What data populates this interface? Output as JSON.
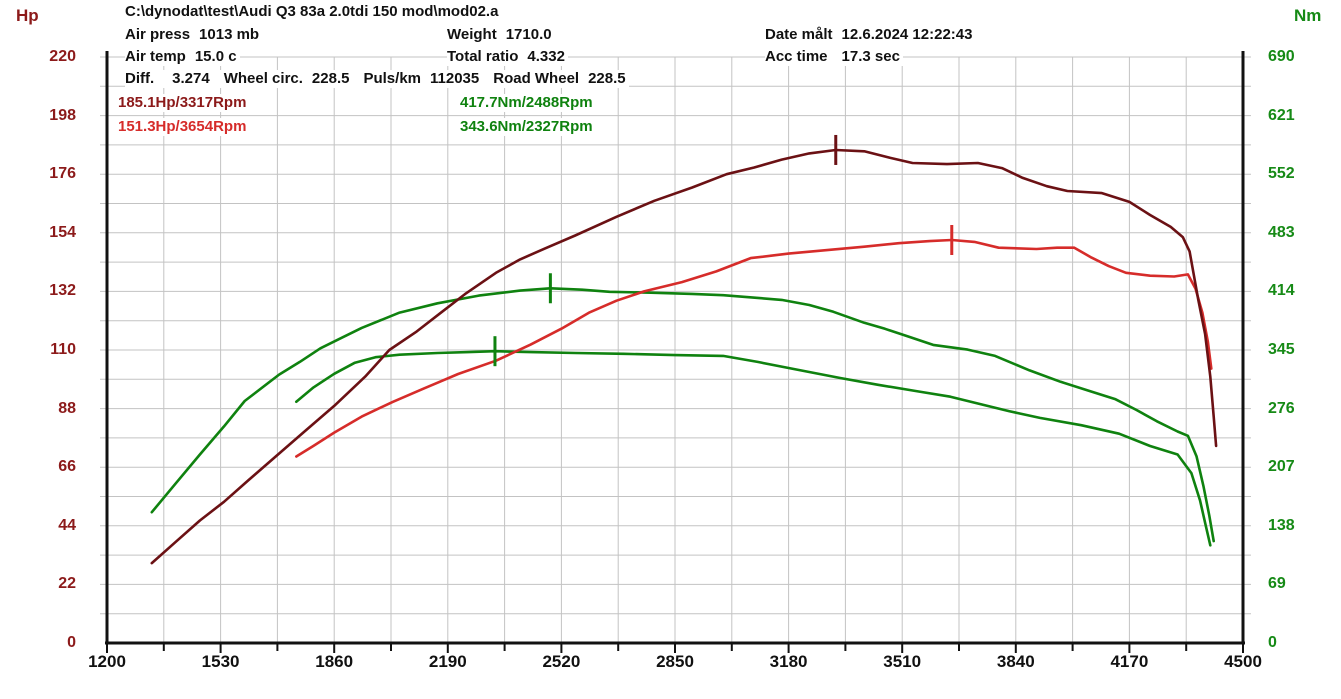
{
  "header": {
    "hp_unit": "Hp",
    "nm_unit": "Nm",
    "title": "C:\\dynodat\\test\\Audi Q3 83a 2.0tdi 150 mod\\mod02.a",
    "air_press_label": "Air press",
    "air_press_value": "1013 mb",
    "air_temp_label": "Air temp",
    "air_temp_value": "15.0 c",
    "weight_label": "Weight",
    "weight_value": "1710.0",
    "total_ratio_label": "Total ratio",
    "total_ratio_value": "4.332",
    "date_label": "Date målt",
    "date_value": "12.6.2024 12:22:43",
    "acc_time_label": "Acc time",
    "acc_time_value": "17.3 sec",
    "diff_label": "Diff.",
    "diff_value": "3.274",
    "wheel_circ_label": "Wheel circ.",
    "wheel_circ_value": "228.5",
    "puls_km_label": "Puls/km",
    "puls_km_value": "112035",
    "road_wheel_label": "Road Wheel",
    "road_wheel_value": "228.5"
  },
  "legend": {
    "hp_mod": "185.1Hp/3317Rpm",
    "hp_orig": "151.3Hp/3654Rpm",
    "nm_mod": "417.7Nm/2488Rpm",
    "nm_orig": "343.6Nm/2327Rpm"
  },
  "colors": {
    "maroon": "#6b1114",
    "red": "#d62c2a",
    "green": "#0f820f",
    "hp_label": "#8c1a1a",
    "nm_label": "#168a16",
    "legend_maroon": "#8c1a1a",
    "grid": "#c3c3c3",
    "axis": "#111111"
  },
  "chart_data": {
    "type": "line",
    "x": {
      "min": 1200,
      "max": 4500,
      "major_ticks": [
        1200,
        1530,
        1860,
        2190,
        2520,
        2850,
        3180,
        3510,
        3840,
        4170,
        4500
      ],
      "minor_step": 165
    },
    "y_left": {
      "label": "Hp",
      "min": 0,
      "max": 220,
      "ticks": [
        0,
        22,
        44,
        66,
        88,
        110,
        132,
        154,
        176,
        198,
        220
      ],
      "minor_step": 11
    },
    "y_right": {
      "label": "Nm",
      "min": 0,
      "max": 690,
      "ticks": [
        0,
        69,
        138,
        207,
        276,
        345,
        414,
        483,
        552,
        621,
        690
      ]
    },
    "grid": true,
    "series": [
      {
        "name": "torque_original_Nm",
        "axis": "nm",
        "color_key": "green",
        "points": [
          [
            1750,
            284
          ],
          [
            1800,
            301
          ],
          [
            1860,
            317
          ],
          [
            1920,
            330
          ],
          [
            1980,
            336.5
          ],
          [
            2050,
            339.5
          ],
          [
            2160,
            341.5
          ],
          [
            2250,
            342.5
          ],
          [
            2327,
            343.6
          ],
          [
            2430,
            342.5
          ],
          [
            2560,
            341.5
          ],
          [
            2700,
            340.5
          ],
          [
            2850,
            339
          ],
          [
            2990,
            338
          ],
          [
            3090,
            331
          ],
          [
            3210,
            321.5
          ],
          [
            3330,
            312
          ],
          [
            3440,
            304
          ],
          [
            3560,
            296
          ],
          [
            3650,
            290
          ],
          [
            3740,
            281
          ],
          [
            3820,
            273
          ],
          [
            3910,
            265
          ],
          [
            4030,
            256.5
          ],
          [
            4140,
            246.5
          ],
          [
            4230,
            232
          ],
          [
            4310,
            222
          ],
          [
            4350,
            200
          ],
          [
            4375,
            168
          ],
          [
            4392,
            138
          ],
          [
            4405,
            115
          ]
        ]
      },
      {
        "name": "torque_modified_Nm",
        "axis": "nm",
        "color_key": "green",
        "points": [
          [
            1330,
            154
          ],
          [
            1400,
            188
          ],
          [
            1470,
            222
          ],
          [
            1540,
            255
          ],
          [
            1600,
            285
          ],
          [
            1700,
            316
          ],
          [
            1760,
            331
          ],
          [
            1820,
            347
          ],
          [
            1880,
            359
          ],
          [
            1940,
            371
          ],
          [
            2050,
            389
          ],
          [
            2160,
            400
          ],
          [
            2280,
            409
          ],
          [
            2400,
            415
          ],
          [
            2488,
            417.7
          ],
          [
            2580,
            416
          ],
          [
            2660,
            413.5
          ],
          [
            2780,
            412.5
          ],
          [
            2900,
            411
          ],
          [
            2990,
            409.5
          ],
          [
            3100,
            406
          ],
          [
            3160,
            404
          ],
          [
            3240,
            398
          ],
          [
            3310,
            390
          ],
          [
            3400,
            377
          ],
          [
            3460,
            370
          ],
          [
            3520,
            362
          ],
          [
            3600,
            351
          ],
          [
            3700,
            345.5
          ],
          [
            3780,
            338
          ],
          [
            3880,
            321
          ],
          [
            3970,
            307.5
          ],
          [
            4060,
            296
          ],
          [
            4130,
            287
          ],
          [
            4190,
            274.5
          ],
          [
            4250,
            261
          ],
          [
            4310,
            249
          ],
          [
            4340,
            244
          ],
          [
            4365,
            220
          ],
          [
            4385,
            185
          ],
          [
            4402,
            150
          ],
          [
            4415,
            120
          ]
        ]
      },
      {
        "name": "power_original_Hp",
        "axis": "hp",
        "color_key": "red",
        "points": [
          [
            1750,
            70
          ],
          [
            1800,
            74
          ],
          [
            1860,
            79
          ],
          [
            1940,
            85
          ],
          [
            2030,
            90.5
          ],
          [
            2120,
            95.5
          ],
          [
            2220,
            101
          ],
          [
            2330,
            106
          ],
          [
            2430,
            112
          ],
          [
            2520,
            118
          ],
          [
            2600,
            124
          ],
          [
            2680,
            128.5
          ],
          [
            2760,
            132
          ],
          [
            2870,
            135.5
          ],
          [
            2970,
            139.5
          ],
          [
            3070,
            144.5
          ],
          [
            3180,
            146.2
          ],
          [
            3300,
            147.6
          ],
          [
            3400,
            148.8
          ],
          [
            3500,
            150.1
          ],
          [
            3590,
            150.9
          ],
          [
            3654,
            151.3
          ],
          [
            3720,
            150.6
          ],
          [
            3790,
            148.4
          ],
          [
            3900,
            147.9
          ],
          [
            3960,
            148.4
          ],
          [
            4010,
            148.4
          ],
          [
            4060,
            144.7
          ],
          [
            4110,
            141.5
          ],
          [
            4160,
            139
          ],
          [
            4230,
            137.9
          ],
          [
            4300,
            137.6
          ],
          [
            4340,
            138.4
          ],
          [
            4362,
            133
          ],
          [
            4382,
            124
          ],
          [
            4398,
            113
          ],
          [
            4408,
            103
          ]
        ]
      },
      {
        "name": "power_modified_Hp",
        "axis": "hp",
        "color_key": "maroon",
        "points": [
          [
            1330,
            30
          ],
          [
            1400,
            38
          ],
          [
            1470,
            46
          ],
          [
            1540,
            53
          ],
          [
            1610,
            61
          ],
          [
            1690,
            70
          ],
          [
            1770,
            79
          ],
          [
            1860,
            89
          ],
          [
            1950,
            100
          ],
          [
            2020,
            110
          ],
          [
            2100,
            117
          ],
          [
            2170,
            124
          ],
          [
            2240,
            131
          ],
          [
            2330,
            139
          ],
          [
            2400,
            144
          ],
          [
            2470,
            148
          ],
          [
            2560,
            153
          ],
          [
            2680,
            160
          ],
          [
            2790,
            166
          ],
          [
            2900,
            171
          ],
          [
            3000,
            176
          ],
          [
            3080,
            178.5
          ],
          [
            3160,
            181.5
          ],
          [
            3240,
            183.8
          ],
          [
            3317,
            185.1
          ],
          [
            3400,
            184.6
          ],
          [
            3470,
            182.3
          ],
          [
            3540,
            180.2
          ],
          [
            3640,
            179.8
          ],
          [
            3730,
            180.2
          ],
          [
            3800,
            178.3
          ],
          [
            3860,
            174.6
          ],
          [
            3930,
            171.5
          ],
          [
            3990,
            169.7
          ],
          [
            4090,
            168.9
          ],
          [
            4170,
            165.6
          ],
          [
            4230,
            160.7
          ],
          [
            4290,
            156.2
          ],
          [
            4325,
            152.4
          ],
          [
            4345,
            147
          ],
          [
            4370,
            129
          ],
          [
            4390,
            116
          ],
          [
            4405,
            100
          ],
          [
            4415,
            85
          ],
          [
            4422,
            74
          ]
        ]
      }
    ],
    "peak_markers": [
      {
        "series": "power_modified_Hp",
        "axis": "hp",
        "rpm": 3317,
        "value": 185.1,
        "color_key": "maroon"
      },
      {
        "series": "power_original_Hp",
        "axis": "hp",
        "rpm": 3654,
        "value": 151.3,
        "color_key": "red"
      },
      {
        "series": "torque_modified_Nm",
        "axis": "nm",
        "rpm": 2488,
        "value": 417.7,
        "color_key": "green"
      },
      {
        "series": "torque_original_Nm",
        "axis": "nm",
        "rpm": 2327,
        "value": 343.6,
        "color_key": "green"
      }
    ]
  }
}
